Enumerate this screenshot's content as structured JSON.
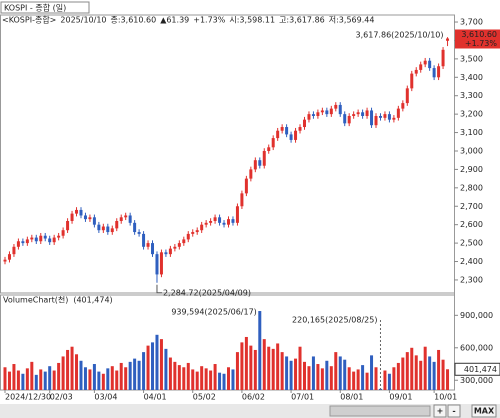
{
  "header": {
    "title": "KOSPI - 종합 (일)",
    "info": [
      "<KOSPI-종합>",
      "2025/10/10",
      "종:3,610.60",
      "▲61.39",
      "+1.73%",
      "시:3,598.11",
      "고:3,617.86",
      "저:3,569.44"
    ]
  },
  "chart_data": [
    {
      "type": "candlestick",
      "up_color": "#e0312d",
      "down_color": "#2f5fbf",
      "categories": [
        "2024/12/30",
        null,
        null,
        null,
        null,
        null,
        null,
        null,
        null,
        null,
        "02/03",
        null,
        null,
        null,
        null,
        null,
        null,
        null,
        null,
        null,
        "03/04",
        null,
        null,
        null,
        null,
        null,
        null,
        null,
        null,
        null,
        null,
        "04/01",
        null,
        null,
        null,
        null,
        null,
        null,
        null,
        null,
        null,
        null,
        "05/02",
        null,
        null,
        null,
        null,
        null,
        null,
        null,
        null,
        null,
        null,
        "06/02",
        null,
        null,
        null,
        null,
        null,
        null,
        null,
        null,
        null,
        null,
        "07/01",
        null,
        null,
        null,
        null,
        null,
        null,
        null,
        null,
        null,
        null,
        "08/01",
        null,
        null,
        null,
        null,
        null,
        null,
        null,
        null,
        null,
        null,
        "09/01",
        null,
        null,
        null,
        null,
        null,
        null,
        null,
        null,
        null,
        "10/01",
        null,
        null,
        null
      ],
      "open": [
        2400,
        2410,
        2440,
        2480,
        2510,
        2500,
        2520,
        2530,
        2510,
        2540,
        2525,
        2505,
        2530,
        2540,
        2570,
        2620,
        2660,
        2680,
        2650,
        2630,
        2640,
        2600,
        2570,
        2590,
        2560,
        2580,
        2620,
        2640,
        2650,
        2610,
        2560,
        2550,
        2480,
        2500,
        2440,
        2330,
        2450,
        2440,
        2470,
        2480,
        2500,
        2520,
        2550,
        2560,
        2570,
        2600,
        2610,
        2620,
        2640,
        2610,
        2600,
        2630,
        2610,
        2700,
        2770,
        2850,
        2900,
        2950,
        2920,
        3000,
        3020,
        3070,
        3110,
        3130,
        3090,
        3060,
        3110,
        3130,
        3170,
        3200,
        3190,
        3210,
        3220,
        3200,
        3230,
        3250,
        3200,
        3150,
        3190,
        3200,
        3210,
        3190,
        3220,
        3140,
        3190,
        3180,
        3200,
        3170,
        3180,
        3230,
        3260,
        3340,
        3420,
        3440,
        3470,
        3490,
        3450,
        3400,
        3460,
        3598.11
      ],
      "high": [
        2425,
        2455,
        2495,
        2525,
        2525,
        2535,
        2545,
        2545,
        2555,
        2555,
        2540,
        2545,
        2555,
        2585,
        2635,
        2675,
        2695,
        2695,
        2665,
        2655,
        2655,
        2615,
        2605,
        2605,
        2595,
        2635,
        2655,
        2665,
        2665,
        2625,
        2575,
        2565,
        2515,
        2515,
        2455,
        2465,
        2465,
        2485,
        2495,
        2515,
        2535,
        2565,
        2575,
        2585,
        2615,
        2625,
        2635,
        2655,
        2655,
        2625,
        2645,
        2645,
        2715,
        2785,
        2865,
        2915,
        2965,
        2965,
        3015,
        3035,
        3085,
        3125,
        3145,
        3145,
        3105,
        3125,
        3145,
        3185,
        3215,
        3215,
        3225,
        3235,
        3235,
        3245,
        3265,
        3265,
        3215,
        3205,
        3215,
        3225,
        3225,
        3235,
        3235,
        3205,
        3205,
        3215,
        3215,
        3195,
        3245,
        3275,
        3355,
        3435,
        3455,
        3485,
        3505,
        3505,
        3465,
        3475,
        3564,
        3617.86
      ],
      "low": [
        2385,
        2395,
        2425,
        2465,
        2485,
        2485,
        2505,
        2495,
        2495,
        2510,
        2490,
        2490,
        2515,
        2525,
        2555,
        2605,
        2645,
        2635,
        2615,
        2615,
        2585,
        2555,
        2555,
        2545,
        2545,
        2565,
        2605,
        2625,
        2595,
        2545,
        2535,
        2465,
        2465,
        2425,
        2284.72,
        2315,
        2425,
        2425,
        2455,
        2465,
        2485,
        2505,
        2535,
        2545,
        2555,
        2585,
        2595,
        2605,
        2595,
        2585,
        2585,
        2595,
        2595,
        2685,
        2755,
        2835,
        2885,
        2905,
        2905,
        2985,
        3005,
        3055,
        3095,
        3075,
        3045,
        3045,
        3095,
        3115,
        3155,
        3175,
        3175,
        3195,
        3185,
        3185,
        3215,
        3185,
        3135,
        3135,
        3175,
        3185,
        3175,
        3175,
        3125,
        3125,
        3165,
        3165,
        3155,
        3155,
        3165,
        3215,
        3245,
        3325,
        3405,
        3425,
        3455,
        3435,
        3385,
        3385,
        3445,
        3569.44
      ],
      "close": [
        2410,
        2440,
        2480,
        2510,
        2500,
        2520,
        2530,
        2510,
        2540,
        2525,
        2505,
        2530,
        2540,
        2570,
        2620,
        2660,
        2680,
        2650,
        2630,
        2640,
        2600,
        2570,
        2590,
        2560,
        2580,
        2620,
        2640,
        2650,
        2610,
        2560,
        2550,
        2480,
        2500,
        2440,
        2330,
        2450,
        2440,
        2470,
        2480,
        2500,
        2520,
        2550,
        2560,
        2570,
        2600,
        2610,
        2620,
        2640,
        2610,
        2600,
        2630,
        2610,
        2700,
        2770,
        2850,
        2900,
        2950,
        2920,
        3000,
        3020,
        3070,
        3110,
        3130,
        3090,
        3060,
        3110,
        3130,
        3170,
        3200,
        3190,
        3210,
        3220,
        3200,
        3230,
        3250,
        3200,
        3150,
        3190,
        3200,
        3210,
        3190,
        3220,
        3140,
        3190,
        3180,
        3200,
        3170,
        3180,
        3230,
        3260,
        3340,
        3420,
        3440,
        3470,
        3490,
        3450,
        3400,
        3460,
        3549.21,
        3610.6
      ],
      "ylim": [
        2240,
        3730
      ],
      "yticks": [
        {
          "value": 2300,
          "label": "2,300"
        },
        {
          "value": 2400,
          "label": "2,400"
        },
        {
          "value": 2500,
          "label": "2,500"
        },
        {
          "value": 2600,
          "label": "2,600"
        },
        {
          "value": 2700,
          "label": "2,700"
        },
        {
          "value": 2800,
          "label": "2,800"
        },
        {
          "value": 2900,
          "label": "2,900"
        },
        {
          "value": 3000,
          "label": "3,000"
        },
        {
          "value": 3100,
          "label": "3,100"
        },
        {
          "value": 3200,
          "label": "3,200"
        },
        {
          "value": 3300,
          "label": "3,300"
        },
        {
          "value": 3400,
          "label": "3,400"
        },
        {
          "value": 3500,
          "label": "3,500"
        },
        {
          "value": 3600,
          "label": "3,600"
        },
        {
          "value": 3700,
          "label": "3,700"
        }
      ],
      "annotations": [
        "2,284.72(2025/04/09)",
        "3,617.86(2025/10/10)"
      ],
      "price_box": [
        "3,610.60",
        "+1.73%"
      ]
    },
    {
      "type": "bar",
      "title": "VolumeChart(천)",
      "subtitle": "(401,474)",
      "values": [
        420000,
        380000,
        450000,
        390000,
        360000,
        410000,
        470000,
        350000,
        400000,
        380000,
        430000,
        390000,
        460000,
        520000,
        580000,
        610000,
        540000,
        480000,
        420000,
        400000,
        450000,
        380000,
        360000,
        410000,
        430000,
        390000,
        460000,
        420000,
        470000,
        500000,
        480000,
        560000,
        620000,
        650000,
        720000,
        680000,
        590000,
        510000,
        470000,
        440000,
        420000,
        460000,
        400000,
        380000,
        430000,
        410000,
        390000,
        450000,
        370000,
        360000,
        420000,
        400000,
        560000,
        650000,
        700000,
        620000,
        580000,
        939594,
        680000,
        610000,
        590000,
        640000,
        560000,
        520000,
        480000,
        500000,
        610000,
        470000,
        430000,
        520000,
        450000,
        410000,
        480000,
        430000,
        560000,
        520000,
        490000,
        420000,
        380000,
        400000,
        440000,
        370000,
        530000,
        420000,
        220165,
        390000,
        360000,
        420000,
        460000,
        510000,
        560000,
        600000,
        530000,
        480000,
        610000,
        520000,
        470000,
        580000,
        490000,
        401474
      ],
      "ylim": [
        210000,
        1060000
      ],
      "yticks": [
        {
          "value": 300000,
          "label": "300,000"
        },
        {
          "value": 600000,
          "label": "600,000"
        },
        {
          "value": 900000,
          "label": "900,000"
        }
      ],
      "annotations": [
        "939,594(2025/06/17)",
        "220,165(2025/08/25)"
      ],
      "volume_box": "401,474"
    }
  ],
  "controls": [
    "+",
    "-",
    "MAX"
  ]
}
